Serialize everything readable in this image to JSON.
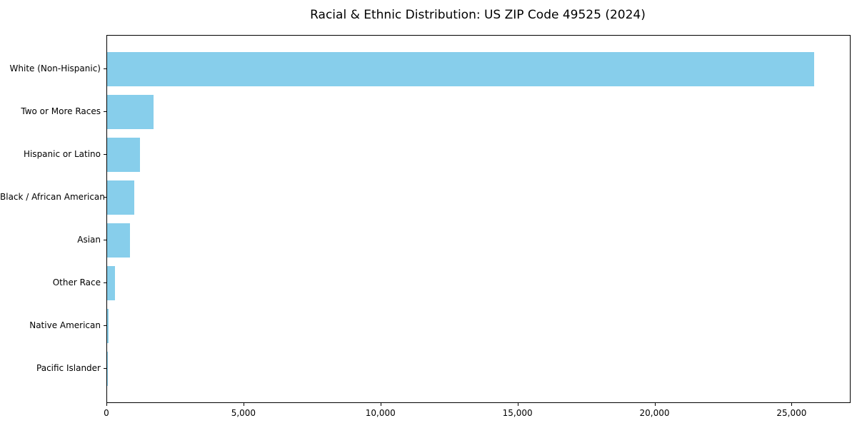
{
  "title": "Racial & Ethnic Distribution: US ZIP Code 49525 (2024)",
  "colors": {
    "bar": "#87CEEB",
    "axis": "#000000",
    "text": "#000000",
    "background": "#FFFFFF"
  },
  "chart_data": {
    "type": "bar",
    "orientation": "horizontal",
    "title": "Racial & Ethnic Distribution: US ZIP Code 49525 (2024)",
    "xlabel": "",
    "ylabel": "",
    "categories": [
      "White (Non-Hispanic)",
      "Two or More Races",
      "Hispanic or Latino",
      "Black / African American",
      "Asian",
      "Other Race",
      "Native American",
      "Pacific Islander"
    ],
    "values": [
      25800,
      1700,
      1200,
      1000,
      840,
      290,
      50,
      20
    ],
    "bar_color": "#87CEEB",
    "xlim": [
      0,
      27100
    ],
    "x_ticks": [
      0,
      5000,
      10000,
      15000,
      20000,
      25000
    ],
    "x_tick_labels": [
      "0",
      "5,000",
      "10,000",
      "15,000",
      "20,000",
      "25,000"
    ],
    "grid": false,
    "legend": null
  }
}
